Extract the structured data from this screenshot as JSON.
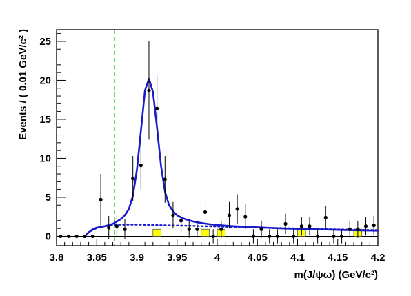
{
  "chart_data": {
    "type": "scatter",
    "xlabel": "m(J/ψω) (GeV/c²)",
    "ylabel": "Events / ( 0.01 GeV/c² )",
    "xlim": [
      3.8,
      4.2
    ],
    "ylim": [
      -1.2,
      26.5
    ],
    "grid": false,
    "x_ticks": [
      3.8,
      3.85,
      3.9,
      3.95,
      4.0,
      4.05,
      4.1,
      4.15,
      4.2
    ],
    "x_tick_labels": [
      "3.8",
      "3.85",
      "3.9",
      "3.95",
      "4",
      "4.05",
      "4.1",
      "4.15",
      "4.2"
    ],
    "y_ticks": [
      0,
      5,
      10,
      15,
      20,
      25
    ],
    "y_tick_labels": [
      "0",
      "5",
      "10",
      "15",
      "20",
      "25"
    ],
    "threshold_line": {
      "x": 3.872,
      "color": "#22cc22",
      "style": "dashed"
    },
    "data_points": {
      "x": [
        3.805,
        3.815,
        3.825,
        3.835,
        3.845,
        3.855,
        3.865,
        3.875,
        3.885,
        3.895,
        3.905,
        3.915,
        3.925,
        3.935,
        3.945,
        3.955,
        3.965,
        3.975,
        3.985,
        3.995,
        4.005,
        4.015,
        4.025,
        4.035,
        4.045,
        4.055,
        4.065,
        4.075,
        4.085,
        4.095,
        4.105,
        4.115,
        4.125,
        4.135,
        4.145,
        4.155,
        4.165,
        4.175,
        4.185,
        4.195
      ],
      "y": [
        0,
        0,
        0,
        0,
        0,
        4.7,
        1.1,
        1.3,
        0.9,
        7.4,
        9.1,
        18.7,
        16.4,
        7.3,
        2.7,
        2.0,
        0.9,
        0.9,
        3.1,
        0,
        0.9,
        2.7,
        3.5,
        2.5,
        0,
        0.9,
        0,
        0,
        1.6,
        0,
        1.3,
        1.3,
        0,
        2.4,
        0,
        0,
        0.9,
        0.9,
        1.3,
        1.4
      ],
      "err": [
        0,
        0,
        0,
        0,
        0,
        3.3,
        1.5,
        1.5,
        1.3,
        2.9,
        3.1,
        6.3,
        4.3,
        3.0,
        1.7,
        1.5,
        1.1,
        1.1,
        1.9,
        0.9,
        1.1,
        1.7,
        1.9,
        1.6,
        0.9,
        1.1,
        0.9,
        0.9,
        1.3,
        0.9,
        1.2,
        1.2,
        0.9,
        1.5,
        0.9,
        0.9,
        1.1,
        1.1,
        1.2,
        1.2
      ],
      "color": "#000000"
    },
    "fit_curves": [
      {
        "style": "solid",
        "color": "#1a1acc",
        "x": [
          3.835,
          3.84,
          3.845,
          3.85,
          3.855,
          3.86,
          3.865,
          3.87,
          3.875,
          3.88,
          3.885,
          3.89,
          3.895,
          3.9,
          3.905,
          3.91,
          3.915,
          3.92,
          3.925,
          3.93,
          3.935,
          3.94,
          3.945,
          3.95,
          3.955,
          3.96,
          3.97,
          3.98,
          3.99,
          4.0,
          4.02,
          4.04,
          4.06,
          4.08,
          4.1,
          4.12,
          4.14,
          4.16,
          4.18,
          4.2
        ],
        "y": [
          0,
          0.5,
          0.9,
          1.1,
          1.2,
          1.3,
          1.45,
          1.6,
          1.9,
          2.2,
          2.7,
          3.5,
          5.2,
          8.5,
          13.5,
          18.7,
          20.2,
          18.5,
          14.0,
          9.0,
          5.7,
          4.0,
          3.2,
          2.7,
          2.4,
          2.2,
          1.9,
          1.7,
          1.55,
          1.45,
          1.3,
          1.2,
          1.1,
          1.0,
          0.95,
          0.9,
          0.85,
          0.8,
          0.75,
          0.72
        ]
      },
      {
        "style": "dotted",
        "color": "#1a1acc",
        "x": [
          3.835,
          3.84,
          3.85,
          3.86,
          3.87,
          3.88,
          3.9,
          3.92,
          3.95,
          4.0,
          4.05,
          4.1,
          4.15,
          4.2
        ],
        "y": [
          0,
          0.55,
          1.05,
          1.3,
          1.45,
          1.5,
          1.5,
          1.45,
          1.38,
          1.25,
          1.1,
          1.0,
          0.88,
          0.78
        ]
      }
    ],
    "background_histogram": {
      "color": "#ffff00",
      "bin_width": 0.01,
      "bins": [
        {
          "x": 3.925,
          "y": 0.9
        },
        {
          "x": 3.985,
          "y": 0.9
        },
        {
          "x": 4.005,
          "y": 0.9
        },
        {
          "x": 4.105,
          "y": 0.9
        },
        {
          "x": 4.175,
          "y": 0.9
        }
      ]
    }
  }
}
